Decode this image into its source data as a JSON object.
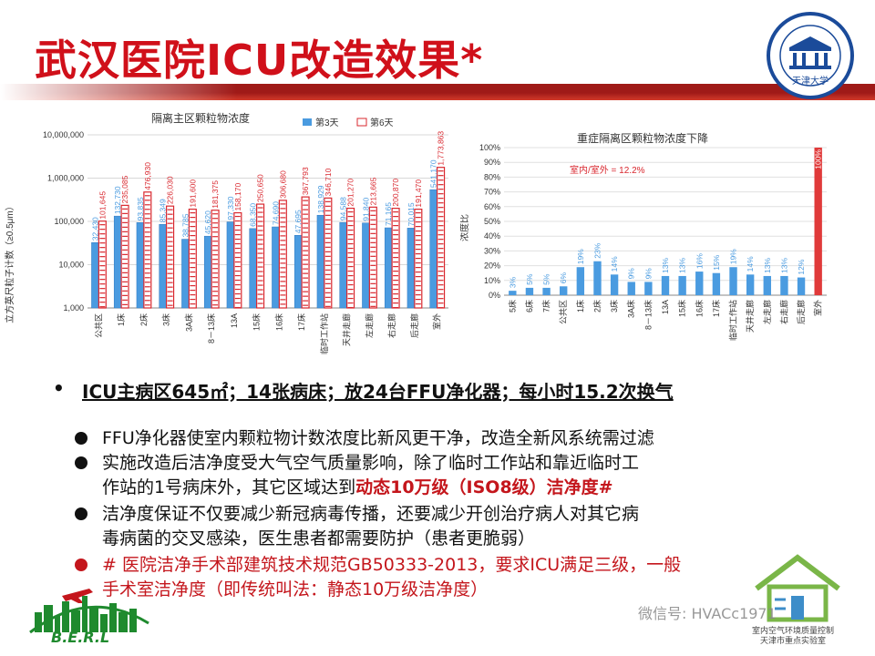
{
  "slide": {
    "title": "武汉医院ICU改造效果*"
  },
  "logo": {
    "tju_label": "天津大学"
  },
  "chart_left": {
    "title": "隔离主区颗粒物浓度",
    "ylabel": "立方英尺粒子计数（≥0.5μm）",
    "legend": [
      "第3天",
      "第6天"
    ],
    "yticks": [
      "1,000",
      "10,000",
      "100,000",
      "1,000,000",
      "10,000,000"
    ]
  },
  "chart_right": {
    "title": "重症隔离区颗粒物浓度下降",
    "ylabel": "浓度比",
    "annotation": "室内/室外 = 12.2%",
    "yticks": [
      "0%",
      "10%",
      "20%",
      "30%",
      "40%",
      "50%",
      "60%",
      "70%",
      "80%",
      "90%",
      "100%"
    ]
  },
  "chart_data": [
    {
      "type": "bar",
      "title": "隔离主区颗粒物浓度",
      "ylabel": "立方英尺粒子计数（≥0.5μm）",
      "yscale": "log",
      "ylim": [
        1000,
        10000000
      ],
      "categories": [
        "公共区",
        "1床",
        "2床",
        "3床",
        "3A床",
        "8－13床",
        "13A",
        "15床",
        "16床",
        "17床",
        "临时工作站",
        "天井走廊",
        "左走廊",
        "右走廊",
        "后走廊",
        "室外"
      ],
      "series": [
        {
          "name": "第3天",
          "color": "#4a9be0",
          "values": [
            32430,
            132730,
            93835,
            85349,
            38785,
            45620,
            97330,
            68350,
            74690,
            47695,
            138929,
            94588,
            91840,
            71165,
            70015,
            541170
          ],
          "labels": [
            "32,430",
            "132,730",
            "93,835",
            "85,349",
            "38,785",
            "45,620",
            "97,330",
            "68,350",
            "74,690",
            "47,695",
            "138,929",
            "94,588",
            "91,840",
            "71,165",
            "70,015",
            "541,170"
          ]
        },
        {
          "name": "第6天",
          "color": "#d9282f",
          "values": [
            101645,
            235085,
            476930,
            226030,
            191600,
            181375,
            158170,
            250650,
            306680,
            367793,
            346710,
            201270,
            213665,
            200870,
            191470,
            1773863
          ],
          "labels": [
            "101,645",
            "235,085",
            "476,930",
            "226,030",
            "191,600",
            "181,375",
            "158,170",
            "250,650",
            "306,680",
            "367,793",
            "346,710",
            "201,270",
            "213,665",
            "200,870",
            "191,470",
            "1,773,863"
          ]
        }
      ],
      "legend_position": "top-right"
    },
    {
      "type": "bar",
      "title": "重症隔离区颗粒物浓度下降",
      "ylabel": "浓度比",
      "ylim": [
        0,
        100
      ],
      "categories": [
        "5床",
        "6床",
        "7床",
        "公共区",
        "1床",
        "2床",
        "3床",
        "3A床",
        "8－13床",
        "13A",
        "15床",
        "16床",
        "17床",
        "临时工作站",
        "天井走廊",
        "左走廊",
        "右走廊",
        "后走廊",
        "室外"
      ],
      "values": [
        3,
        5,
        5,
        6,
        19,
        23,
        14,
        9,
        9,
        13,
        13,
        16,
        15,
        19,
        14,
        13,
        13,
        12,
        100
      ],
      "labels": [
        "3%",
        "5%",
        "5%",
        "6%",
        "19%",
        "23%",
        "14%",
        "9%",
        "9%",
        "13%",
        "13%",
        "16%",
        "15%",
        "19%",
        "14%",
        "13%",
        "13%",
        "12%",
        "100%"
      ],
      "colors": {
        "bar": "#4a9be0",
        "outdoor": "#e03a3a"
      },
      "annotation": "室内/室外 = 12.2%"
    }
  ],
  "bullets": {
    "main": "ICU主病区645㎡；14张病床；放24台FFU净化器；每小时15.2次换气",
    "dot": "•",
    "item1": "FFU净化器使室内颗粒物计数浓度比新风更干净，改造全新风系统需过滤",
    "item2_l1": "实施改造后洁净度受大气空气质量影响，除了临时工作站和靠近临时工",
    "item2_l2a": "作站的1号病床外，其它区域达到",
    "item2_l2b": "动态10万级（ISO8级）洁净度#",
    "item3_l1": "洁净度保证不仅要减少新冠病毒传播，还要减少开创治疗病人对其它病",
    "item3_l2": "毒病菌的交叉感染，医生患者都需要防护（患者更脆弱）",
    "item4_l1": "# 医院洁净手术部建筑技术规范GB50333-2013，要求ICU满足三级，一般",
    "item4_l2": "手术室洁净度（即传统叫法：静态10万级洁净度）"
  },
  "footer": {
    "berl": "B.E.R.L",
    "lab_l1": "室内空气环境质量控制",
    "lab_l2": "天津市重点实验室",
    "watermark": "微信号: HVACc1971"
  }
}
